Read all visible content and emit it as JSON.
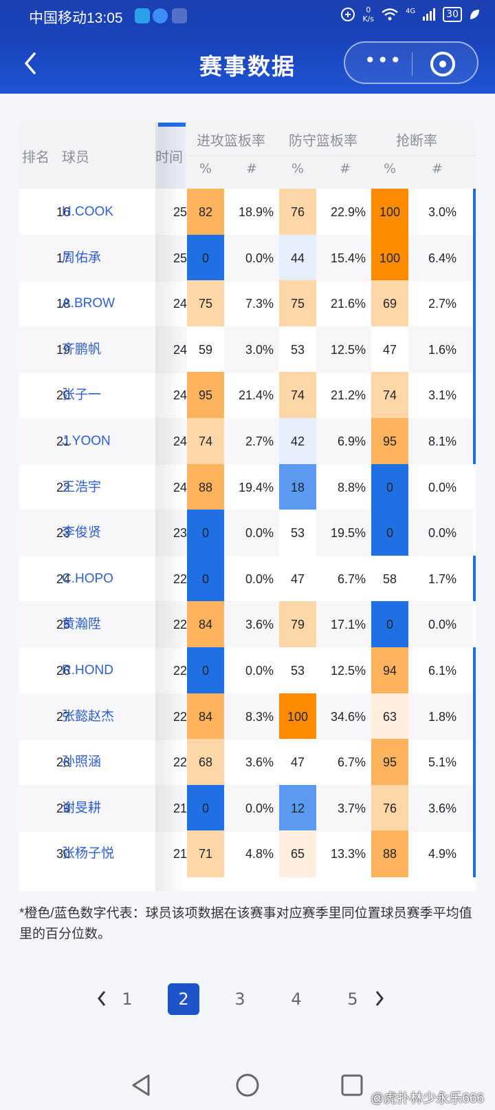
{
  "status_bar": {
    "carrier_time": "中国移动13:05",
    "speed_value": "0",
    "speed_unit": "K/s",
    "battery": "30",
    "network": "4G"
  },
  "header": {
    "title": "赛事数据"
  },
  "table": {
    "headers": {
      "rank": "排名",
      "player": "球员",
      "minutes": "时间",
      "oreb": "进攻篮板率",
      "dreb": "防守篮板率",
      "stl": "抢断率"
    },
    "sub_headers": {
      "pct": "%",
      "num": "#"
    },
    "colors": {
      "orange_strong": "#ff8c00",
      "orange_mid": "#ffb35c",
      "orange_light": "#ffd6a8",
      "orange_pale": "#ffeedd",
      "blue_strong": "#1f6fe5",
      "blue_mid": "#5a9af0",
      "blue_pale": "#e6f0fd"
    },
    "rows": [
      {
        "rank": "16",
        "name": "H.COOK",
        "min": "25",
        "o_p": "82",
        "o_v": "18.9%",
        "d_p": "76",
        "d_v": "22.9%",
        "s_p": "100",
        "s_v": "3.0%"
      },
      {
        "rank": "17",
        "name": "周佑承",
        "min": "25",
        "o_p": "0",
        "o_v": "0.0%",
        "d_p": "44",
        "d_v": "15.4%",
        "s_p": "100",
        "s_v": "6.4%"
      },
      {
        "rank": "18",
        "name": "A.BROW",
        "min": "24",
        "o_p": "75",
        "o_v": "7.3%",
        "d_p": "75",
        "d_v": "21.6%",
        "s_p": "69",
        "s_v": "2.7%"
      },
      {
        "rank": "19",
        "name": "齐鹏帆",
        "min": "24",
        "o_p": "59",
        "o_v": "3.0%",
        "d_p": "53",
        "d_v": "12.5%",
        "s_p": "47",
        "s_v": "1.6%"
      },
      {
        "rank": "20",
        "name": "张子一",
        "min": "24",
        "o_p": "95",
        "o_v": "21.4%",
        "d_p": "74",
        "d_v": "21.2%",
        "s_p": "74",
        "s_v": "3.1%"
      },
      {
        "rank": "21",
        "name": "J.YOON",
        "min": "24",
        "o_p": "74",
        "o_v": "2.7%",
        "d_p": "42",
        "d_v": "6.9%",
        "s_p": "95",
        "s_v": "8.1%"
      },
      {
        "rank": "22",
        "name": "王浩宇",
        "min": "24",
        "o_p": "88",
        "o_v": "19.4%",
        "d_p": "18",
        "d_v": "8.8%",
        "s_p": "0",
        "s_v": "0.0%"
      },
      {
        "rank": "23",
        "name": "李俊贤",
        "min": "23",
        "o_p": "0",
        "o_v": "0.0%",
        "d_p": "53",
        "d_v": "19.5%",
        "s_p": "0",
        "s_v": "0.0%"
      },
      {
        "rank": "24",
        "name": "C.HOPO",
        "min": "22",
        "o_p": "0",
        "o_v": "0.0%",
        "d_p": "47",
        "d_v": "6.7%",
        "s_p": "58",
        "s_v": "1.7%"
      },
      {
        "rank": "25",
        "name": "黄瀚陞",
        "min": "22",
        "o_p": "84",
        "o_v": "3.6%",
        "d_p": "79",
        "d_v": "17.1%",
        "s_p": "0",
        "s_v": "0.0%"
      },
      {
        "rank": "26",
        "name": "R.HOND",
        "min": "22",
        "o_p": "0",
        "o_v": "0.0%",
        "d_p": "53",
        "d_v": "12.5%",
        "s_p": "94",
        "s_v": "6.1%"
      },
      {
        "rank": "27",
        "name": "张懿赵杰",
        "min": "22",
        "o_p": "84",
        "o_v": "8.3%",
        "d_p": "100",
        "d_v": "34.6%",
        "s_p": "63",
        "s_v": "1.8%"
      },
      {
        "rank": "28",
        "name": "孙照涵",
        "min": "22",
        "o_p": "68",
        "o_v": "3.6%",
        "d_p": "47",
        "d_v": "6.7%",
        "s_p": "95",
        "s_v": "5.1%"
      },
      {
        "rank": "29",
        "name": "谢旻耕",
        "min": "21",
        "o_p": "0",
        "o_v": "0.0%",
        "d_p": "12",
        "d_v": "3.7%",
        "s_p": "76",
        "s_v": "3.6%"
      },
      {
        "rank": "30",
        "name": "张杨子悦",
        "min": "21",
        "o_p": "71",
        "o_v": "4.8%",
        "d_p": "65",
        "d_v": "13.3%",
        "s_p": "88",
        "s_v": "4.9%"
      }
    ]
  },
  "note": "*橙色/蓝色数字代表：球员该项数据在该赛事对应赛季里同位置球员赛季平均值里的百分位数。",
  "pagination": {
    "pages": [
      "1",
      "2",
      "3",
      "4",
      "5"
    ],
    "current": "2"
  },
  "watermark": "@虎扑林少永乐666"
}
